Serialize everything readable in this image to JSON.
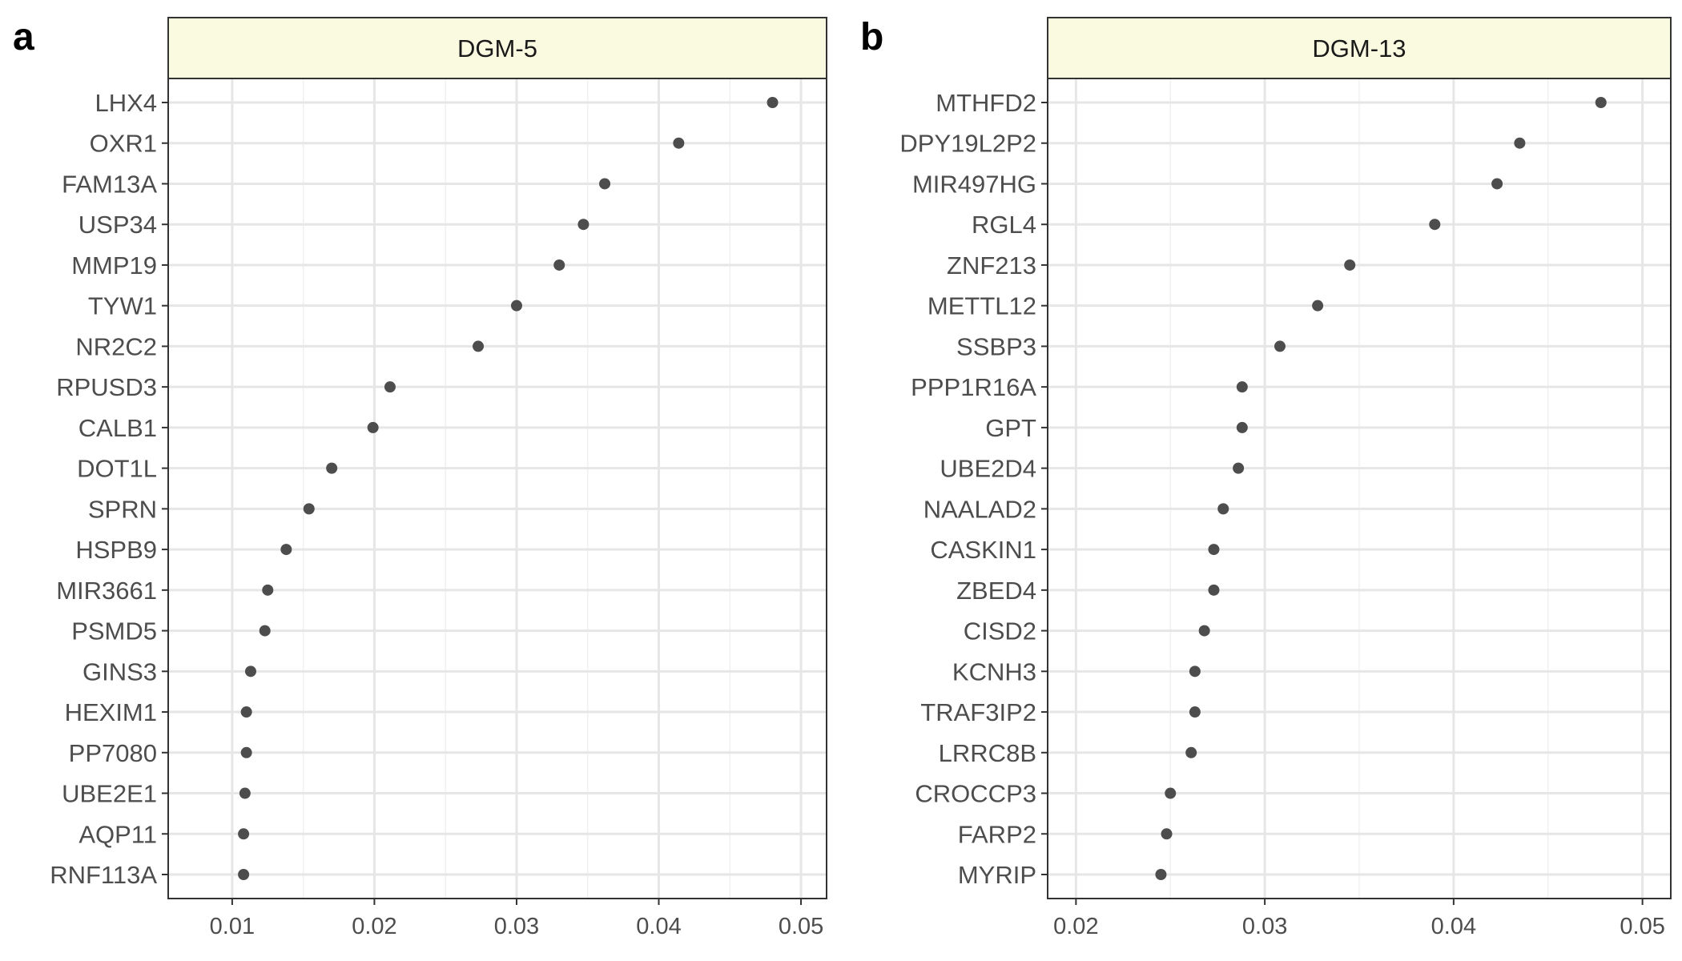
{
  "colors": {
    "strip_fill": "#fafae0",
    "point": "#4d4d4d",
    "grid_major": "#e6e6e6",
    "grid_minor": "#f0f0f0",
    "axis_text": "#4d4d4d",
    "frame": "#333333"
  },
  "chart_data": [
    {
      "type": "scatter",
      "panel_label": "a",
      "strip_title": "DGM-5",
      "xlim": [
        0.0055,
        0.0518
      ],
      "xticks": [
        0.01,
        0.02,
        0.03,
        0.04,
        0.05
      ],
      "xtick_labels": [
        "0.01",
        "0.02",
        "0.03",
        "0.04",
        "0.05"
      ],
      "xlabel": "",
      "ylabel": "",
      "grid": true,
      "categories": [
        "LHX4",
        "OXR1",
        "FAM13A",
        "USP34",
        "MMP19",
        "TYW1",
        "NR2C2",
        "RPUSD3",
        "CALB1",
        "DOT1L",
        "SPRN",
        "HSPB9",
        "MIR3661",
        "PSMD5",
        "GINS3",
        "HEXIM1",
        "PP7080",
        "UBE2E1",
        "AQP11",
        "RNF113A"
      ],
      "values": [
        0.048,
        0.0414,
        0.0362,
        0.0347,
        0.033,
        0.03,
        0.0273,
        0.0211,
        0.0199,
        0.017,
        0.0154,
        0.0138,
        0.0125,
        0.0123,
        0.0113,
        0.011,
        0.011,
        0.0109,
        0.0108,
        0.0108
      ]
    },
    {
      "type": "scatter",
      "panel_label": "b",
      "strip_title": "DGM-13",
      "xlim": [
        0.0185,
        0.0515
      ],
      "xticks": [
        0.02,
        0.03,
        0.04,
        0.05
      ],
      "xtick_labels": [
        "0.02",
        "0.03",
        "0.04",
        "0.05"
      ],
      "xlabel": "",
      "ylabel": "",
      "grid": true,
      "categories": [
        "MTHFD2",
        "DPY19L2P2",
        "MIR497HG",
        "RGL4",
        "ZNF213",
        "METTL12",
        "SSBP3",
        "PPP1R16A",
        "GPT",
        "UBE2D4",
        "NAALAD2",
        "CASKIN1",
        "ZBED4",
        "CISD2",
        "KCNH3",
        "TRAF3IP2",
        "LRRC8B",
        "CROCCP3",
        "FARP2",
        "MYRIP"
      ],
      "values": [
        0.0478,
        0.0435,
        0.0423,
        0.039,
        0.0345,
        0.0328,
        0.0308,
        0.0288,
        0.0288,
        0.0286,
        0.0278,
        0.0273,
        0.0273,
        0.0268,
        0.0263,
        0.0263,
        0.0261,
        0.025,
        0.0248,
        0.0245
      ]
    }
  ]
}
